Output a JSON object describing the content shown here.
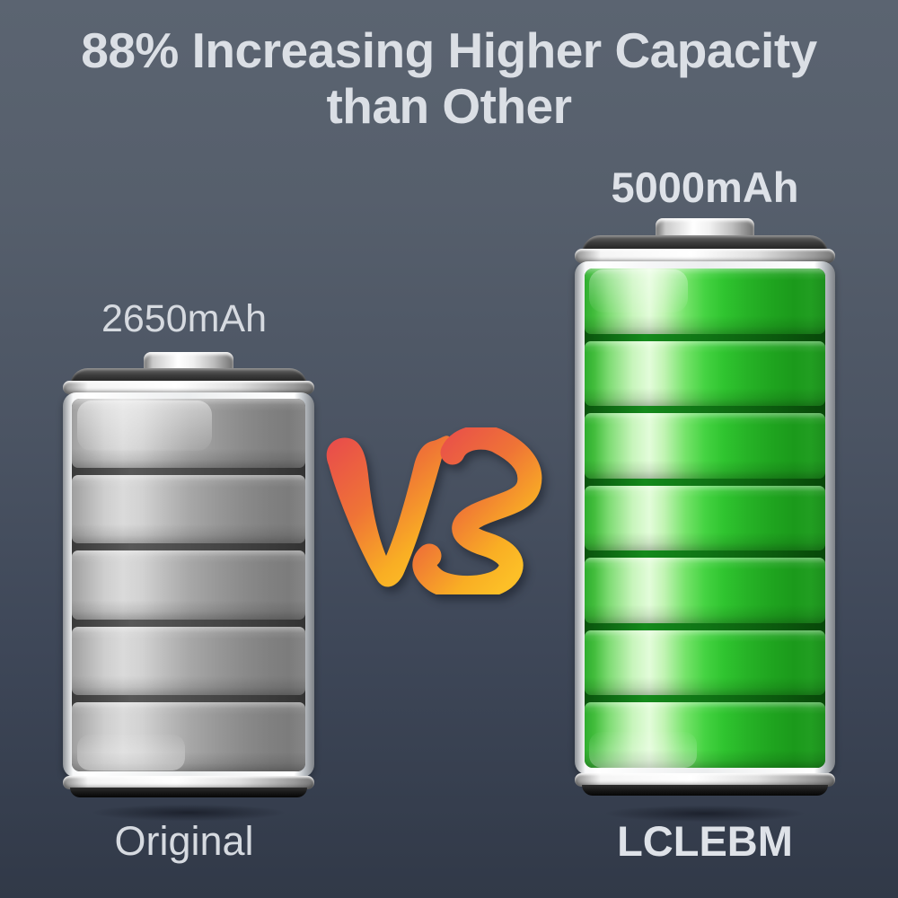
{
  "title": {
    "line1": "88% Increasing Higher Capacity",
    "line2": "than Other"
  },
  "vs": {
    "label": "VS",
    "gradient_start": "#e8494d",
    "gradient_mid": "#ef7436",
    "gradient_end": "#fcbf27"
  },
  "batteries": {
    "original": {
      "capacity": "2650mAh",
      "brand": "Original",
      "segment_count": 5,
      "fill_color_name": "gray",
      "fill_base_color": "#9e9e9e"
    },
    "upgraded": {
      "capacity": "5000mAh",
      "brand": "LCLEBM",
      "segment_count": 7,
      "fill_color_name": "green",
      "fill_base_color": "#2fc42f"
    }
  },
  "colors": {
    "background_top": "#5b6471",
    "background_bottom": "#313948",
    "title_text": "#dbdfe5",
    "label_text": "#d6dae0"
  }
}
